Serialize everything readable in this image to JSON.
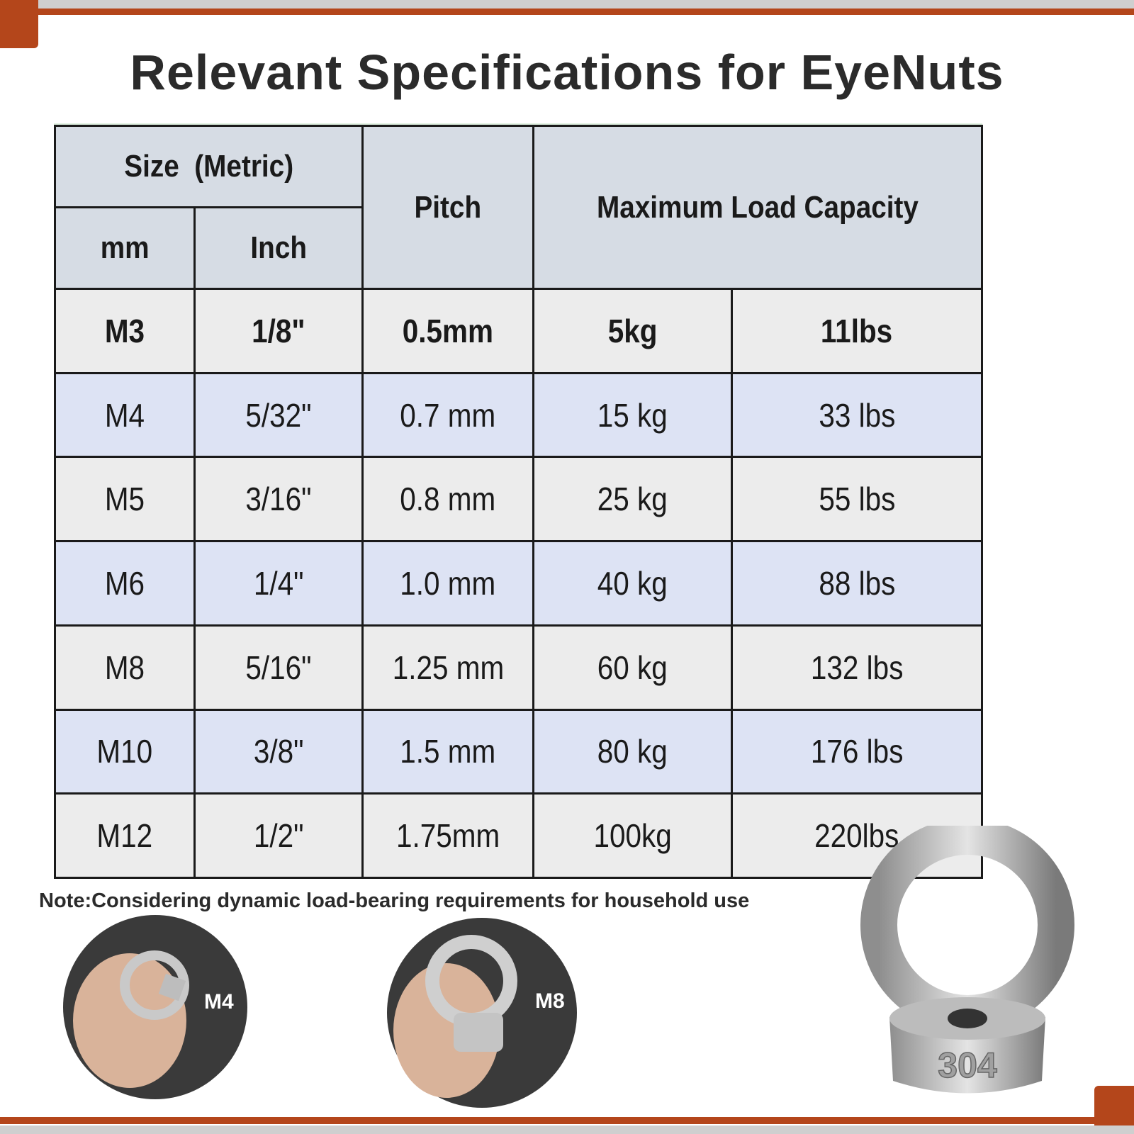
{
  "title": "Relevant Specifications for EyeNuts",
  "table": {
    "header": {
      "size": "Size  (Metric)",
      "mm": "mm",
      "inch": "Inch",
      "pitch": "Pitch",
      "capacity": "Maximum Load Capacity"
    },
    "rows": [
      [
        "M3",
        "1/8\"",
        "0.5mm",
        "5kg",
        "11lbs"
      ],
      [
        "M4",
        "5/32\"",
        "0.7 mm",
        "15 kg",
        "33 lbs"
      ],
      [
        "M5",
        "3/16\"",
        "0.8 mm",
        "25 kg",
        "55 lbs"
      ],
      [
        "M6",
        "1/4\"",
        "1.0 mm",
        "40 kg",
        "88 lbs"
      ],
      [
        "M8",
        "5/16\"",
        "1.25 mm",
        "60 kg",
        "132 lbs"
      ],
      [
        "M10",
        "3/8\"",
        "1.5 mm",
        "80 kg",
        "176 lbs"
      ],
      [
        "M12",
        "1/2\"",
        "1.75mm",
        "100kg",
        "220lbs"
      ]
    ]
  },
  "note": "Note:Considering dynamic load-bearing requirements for household use",
  "photos": {
    "small": "M4",
    "medium": "M8",
    "engraving": "304"
  }
}
